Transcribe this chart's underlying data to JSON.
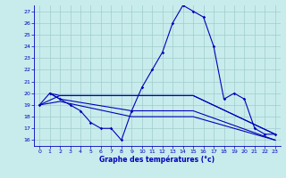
{
  "xlabel": "Graphe des températures (°c)",
  "ylim": [
    15.5,
    27.5
  ],
  "xlim": [
    -0.5,
    23.5
  ],
  "yticks": [
    16,
    17,
    18,
    19,
    20,
    21,
    22,
    23,
    24,
    25,
    26,
    27
  ],
  "xticks": [
    0,
    1,
    2,
    3,
    4,
    5,
    6,
    7,
    8,
    9,
    10,
    11,
    12,
    13,
    14,
    15,
    16,
    17,
    18,
    19,
    20,
    21,
    22,
    23
  ],
  "bg_color": "#c8ecec",
  "line_color": "#0000bb",
  "grid_color": "#a0cccc",
  "series": {
    "main": {
      "x": [
        0,
        1,
        2,
        3,
        4,
        5,
        6,
        7,
        8,
        9,
        10,
        11,
        12,
        13,
        14,
        15,
        16,
        17,
        18,
        19,
        20,
        21,
        22,
        23
      ],
      "y": [
        19.0,
        20.0,
        19.5,
        19.0,
        18.5,
        17.5,
        17.0,
        17.0,
        16.0,
        18.5,
        20.5,
        22.0,
        23.5,
        26.0,
        27.5,
        27.0,
        26.5,
        24.0,
        19.5,
        20.0,
        19.5,
        17.0,
        16.5,
        16.5
      ]
    },
    "flat1": {
      "x": [
        0,
        2,
        15,
        23
      ],
      "y": [
        19.0,
        19.8,
        19.8,
        16.5
      ]
    },
    "flat2": {
      "x": [
        1,
        2,
        15,
        23
      ],
      "y": [
        20.0,
        19.8,
        19.8,
        16.5
      ]
    },
    "flat3": {
      "x": [
        1,
        2,
        9,
        15,
        23
      ],
      "y": [
        20.0,
        19.5,
        18.5,
        18.5,
        16.0
      ]
    },
    "flat4": {
      "x": [
        0,
        2,
        9,
        15,
        23
      ],
      "y": [
        19.0,
        19.3,
        18.0,
        18.0,
        16.0
      ]
    }
  }
}
